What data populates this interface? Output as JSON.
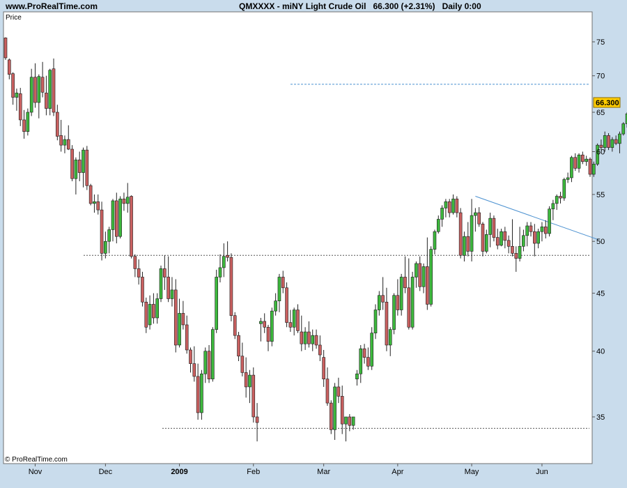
{
  "header": {
    "site": "www.ProRealTime.com",
    "symbol": "QMXXXX - miNY Light Crude Oil",
    "last": "66.300 (+2.31%)",
    "period": "Daily",
    "time": "0:00"
  },
  "footer": {
    "copyright": "© ProRealTime.com"
  },
  "colors": {
    "up": "#3db83d",
    "down": "#c96060",
    "wick": "#222222",
    "price_badge": "#ffcc00",
    "trend_line": "#4a90d0"
  },
  "chart_data": {
    "type": "candlestick",
    "ylabel": "Price",
    "ylim": [
      32,
      78
    ],
    "y_scale": "log",
    "yticks": [
      35,
      40,
      45,
      50,
      55,
      60,
      65,
      70,
      75
    ],
    "x_labels": [
      "Nov",
      "Dec",
      "2009",
      "Feb",
      "Mar",
      "Apr",
      "May",
      "Jun"
    ],
    "current_price": "66.300",
    "horizontal_levels": [
      68.8,
      48.6,
      34.2
    ],
    "trendline": {
      "from": {
        "bar": 127,
        "price": 54.8
      },
      "to": {
        "bar": 158,
        "price": 50.6
      }
    },
    "ohlc": [
      [
        75.6,
        75.7,
        72.3,
        72.6
      ],
      [
        72.3,
        72.5,
        69.5,
        70.2
      ],
      [
        70.3,
        70.5,
        66.0,
        67.0
      ],
      [
        67.0,
        68.2,
        65.2,
        67.6
      ],
      [
        67.5,
        68.3,
        63.2,
        64.0
      ],
      [
        64.0,
        65.3,
        61.6,
        62.5
      ],
      [
        62.5,
        65.5,
        62.0,
        65.0
      ],
      [
        65.0,
        71.0,
        64.5,
        69.8
      ],
      [
        69.8,
        71.8,
        65.6,
        66.3
      ],
      [
        66.3,
        70.2,
        64.2,
        69.9
      ],
      [
        69.8,
        72.0,
        67.0,
        67.7
      ],
      [
        67.6,
        70.0,
        64.6,
        65.5
      ],
      [
        65.5,
        71.0,
        64.6,
        70.8
      ],
      [
        71.0,
        72.5,
        64.5,
        65.0
      ],
      [
        65.0,
        66.0,
        61.4,
        61.9
      ],
      [
        62.0,
        64.0,
        60.0,
        60.8
      ],
      [
        60.8,
        62.0,
        59.8,
        61.5
      ],
      [
        61.5,
        63.3,
        60.2,
        60.3
      ],
      [
        60.3,
        60.8,
        56.5,
        56.8
      ],
      [
        56.8,
        59.3,
        55.0,
        59.0
      ],
      [
        59.0,
        60.0,
        56.5,
        57.5
      ],
      [
        57.5,
        60.5,
        55.8,
        60.2
      ],
      [
        60.2,
        60.7,
        55.5,
        56.0
      ],
      [
        56.0,
        56.2,
        53.8,
        54.0
      ],
      [
        54.0,
        55.0,
        53.0,
        54.2
      ],
      [
        54.2,
        55.0,
        52.8,
        53.3
      ],
      [
        53.3,
        54.2,
        48.1,
        48.8
      ],
      [
        48.8,
        51.0,
        48.3,
        50.0
      ],
      [
        50.0,
        51.5,
        48.8,
        51.2
      ],
      [
        51.2,
        54.5,
        50.0,
        54.3
      ],
      [
        54.3,
        55.2,
        49.8,
        50.5
      ],
      [
        50.5,
        54.8,
        50.3,
        54.5
      ],
      [
        54.5,
        55.2,
        53.2,
        54.0
      ],
      [
        54.0,
        56.3,
        53.0,
        54.7
      ],
      [
        54.8,
        54.9,
        48.3,
        48.5
      ],
      [
        48.5,
        48.7,
        46.5,
        47.3
      ],
      [
        47.3,
        48.2,
        45.8,
        46.5
      ],
      [
        46.5,
        47.0,
        43.8,
        44.2
      ],
      [
        44.2,
        44.6,
        41.5,
        42.0
      ],
      [
        42.2,
        44.8,
        41.8,
        44.0
      ],
      [
        44.0,
        45.0,
        42.3,
        42.8
      ],
      [
        42.8,
        45.0,
        42.3,
        44.5
      ],
      [
        44.5,
        47.6,
        44.2,
        47.3
      ],
      [
        47.3,
        48.6,
        45.3,
        46.5
      ],
      [
        46.5,
        48.5,
        44.2,
        44.5
      ],
      [
        44.5,
        46.5,
        43.8,
        45.3
      ],
      [
        45.3,
        46.3,
        39.9,
        40.5
      ],
      [
        40.5,
        44.5,
        40.3,
        43.2
      ],
      [
        43.2,
        44.3,
        41.8,
        42.2
      ],
      [
        42.2,
        43.0,
        39.8,
        40.1
      ],
      [
        40.1,
        40.3,
        38.3,
        39.0
      ],
      [
        39.0,
        40.4,
        37.6,
        38.0
      ],
      [
        38.0,
        39.0,
        34.8,
        35.3
      ],
      [
        35.3,
        38.5,
        34.8,
        38.2
      ],
      [
        38.2,
        40.3,
        37.5,
        40.0
      ],
      [
        40.0,
        40.5,
        37.5,
        37.8
      ],
      [
        37.8,
        42.0,
        37.6,
        41.8
      ],
      [
        41.8,
        47.2,
        41.5,
        46.5
      ],
      [
        46.5,
        48.7,
        46.0,
        47.4
      ],
      [
        47.4,
        49.8,
        46.5,
        48.5
      ],
      [
        48.6,
        50.0,
        48.0,
        48.4
      ],
      [
        48.4,
        48.8,
        42.5,
        43.0
      ],
      [
        43.0,
        43.3,
        41.0,
        41.3
      ],
      [
        41.3,
        41.6,
        39.2,
        39.6
      ],
      [
        39.6,
        40.7,
        38.0,
        38.3
      ],
      [
        38.3,
        39.5,
        36.4,
        37.2
      ],
      [
        37.2,
        38.5,
        36.0,
        38.1
      ],
      [
        38.1,
        38.7,
        34.6,
        35.0
      ],
      [
        35.0,
        36.0,
        33.3,
        34.6
      ],
      [
        42.3,
        42.8,
        40.8,
        42.5
      ],
      [
        42.5,
        43.2,
        41.5,
        42.0
      ],
      [
        42.0,
        42.2,
        40.0,
        40.8
      ],
      [
        40.8,
        43.7,
        40.4,
        43.4
      ],
      [
        43.4,
        45.0,
        43.0,
        44.3
      ],
      [
        44.3,
        46.8,
        43.3,
        46.5
      ],
      [
        46.5,
        47.1,
        45.0,
        45.5
      ],
      [
        45.5,
        46.0,
        42.0,
        42.4
      ],
      [
        42.4,
        43.5,
        41.6,
        42.0
      ],
      [
        42.0,
        43.7,
        41.3,
        43.5
      ],
      [
        43.5,
        44.0,
        41.5,
        41.7
      ],
      [
        41.6,
        43.0,
        40.0,
        40.6
      ],
      [
        40.6,
        42.0,
        40.1,
        41.6
      ],
      [
        41.6,
        42.5,
        40.3,
        40.6
      ],
      [
        40.6,
        41.8,
        40.0,
        41.3
      ],
      [
        41.3,
        41.8,
        40.2,
        40.5
      ],
      [
        40.5,
        41.3,
        39.2,
        39.7
      ],
      [
        39.5,
        40.1,
        37.2,
        37.8
      ],
      [
        37.8,
        38.7,
        35.8,
        36.0
      ],
      [
        36.0,
        36.2,
        33.8,
        34.1
      ],
      [
        34.1,
        37.5,
        33.4,
        37.2
      ],
      [
        37.2,
        37.9,
        36.0,
        36.5
      ],
      [
        36.5,
        37.3,
        33.8,
        34.5
      ],
      [
        34.5,
        35.0,
        33.3,
        35.0
      ],
      [
        35.0,
        35.2,
        34.0,
        34.4
      ],
      [
        34.4,
        35.0,
        34.1,
        35.0
      ],
      [
        37.8,
        38.5,
        37.3,
        38.2
      ],
      [
        38.2,
        40.5,
        37.5,
        40.2
      ],
      [
        40.2,
        40.6,
        39.0,
        39.5
      ],
      [
        39.5,
        40.3,
        38.5,
        38.8
      ],
      [
        38.8,
        42.0,
        38.5,
        41.5
      ],
      [
        41.5,
        44.0,
        41.0,
        43.5
      ],
      [
        43.5,
        45.2,
        43.0,
        44.8
      ],
      [
        44.8,
        46.5,
        43.5,
        44.2
      ],
      [
        44.2,
        45.5,
        40.0,
        40.5
      ],
      [
        40.5,
        42.0,
        39.6,
        41.8
      ],
      [
        41.8,
        45.0,
        41.4,
        44.8
      ],
      [
        44.8,
        46.3,
        43.0,
        43.5
      ],
      [
        43.5,
        46.8,
        43.0,
        46.5
      ],
      [
        46.5,
        48.5,
        45.0,
        45.5
      ],
      [
        45.5,
        48.3,
        41.8,
        42.0
      ],
      [
        42.0,
        47.0,
        41.8,
        46.5
      ],
      [
        46.5,
        48.0,
        45.5,
        47.8
      ],
      [
        47.8,
        48.5,
        45.2,
        45.6
      ],
      [
        45.6,
        47.8,
        45.0,
        47.5
      ],
      [
        47.5,
        50.4,
        43.5,
        44.0
      ],
      [
        44.0,
        49.5,
        43.8,
        49.2
      ],
      [
        49.2,
        51.2,
        48.7,
        51.0
      ],
      [
        51.0,
        52.7,
        50.8,
        52.3
      ],
      [
        52.3,
        53.8,
        51.5,
        53.5
      ],
      [
        53.5,
        54.5,
        52.5,
        54.2
      ],
      [
        54.2,
        54.5,
        52.5,
        53.0
      ],
      [
        53.0,
        55.0,
        52.8,
        54.5
      ],
      [
        54.5,
        54.8,
        52.5,
        53.0
      ],
      [
        53.0,
        53.5,
        48.3,
        48.6
      ],
      [
        48.6,
        51.0,
        48.0,
        50.5
      ],
      [
        50.5,
        52.0,
        48.5,
        49.0
      ],
      [
        49.0,
        54.5,
        48.0,
        52.7
      ],
      [
        52.7,
        53.5,
        51.0,
        53.0
      ],
      [
        53.0,
        53.6,
        51.5,
        51.8
      ],
      [
        51.8,
        52.0,
        48.5,
        49.0
      ],
      [
        49.0,
        51.2,
        48.8,
        50.7
      ],
      [
        50.7,
        53.0,
        49.4,
        52.4
      ],
      [
        52.4,
        52.7,
        50.0,
        50.4
      ],
      [
        50.4,
        51.3,
        49.2,
        49.6
      ],
      [
        49.6,
        51.3,
        49.5,
        51.0
      ],
      [
        51.0,
        51.5,
        49.3,
        50.1
      ],
      [
        50.1,
        50.6,
        48.8,
        49.5
      ],
      [
        49.5,
        52.3,
        48.5,
        48.8
      ],
      [
        48.8,
        49.5,
        47.0,
        48.3
      ],
      [
        48.3,
        51.5,
        48.0,
        49.5
      ],
      [
        49.5,
        51.2,
        49.0,
        50.6
      ],
      [
        50.6,
        52.0,
        49.5,
        51.6
      ],
      [
        51.6,
        52.0,
        50.5,
        51.0
      ],
      [
        51.0,
        51.8,
        48.5,
        49.8
      ],
      [
        49.8,
        51.3,
        49.3,
        51.0
      ],
      [
        51.0,
        52.0,
        50.0,
        51.5
      ],
      [
        51.5,
        52.2,
        50.3,
        50.8
      ],
      [
        50.8,
        53.7,
        50.5,
        53.4
      ],
      [
        53.4,
        54.4,
        52.2,
        54.0
      ],
      [
        54.0,
        55.0,
        53.3,
        54.8
      ],
      [
        54.8,
        55.3,
        54.0,
        54.6
      ],
      [
        54.6,
        56.9,
        54.3,
        56.7
      ],
      [
        56.7,
        57.5,
        56.3,
        56.9
      ],
      [
        56.9,
        59.5,
        56.4,
        59.3
      ],
      [
        59.3,
        59.8,
        57.7,
        58.0
      ],
      [
        58.0,
        59.8,
        57.5,
        59.6
      ],
      [
        59.6,
        60.0,
        58.5,
        58.8
      ],
      [
        58.8,
        59.5,
        58.3,
        59.1
      ],
      [
        59.1,
        59.3,
        57.0,
        57.3
      ],
      [
        57.3,
        58.8,
        57.0,
        58.5
      ],
      [
        58.5,
        61.0,
        58.3,
        60.8
      ],
      [
        60.8,
        61.5,
        60.2,
        60.5
      ],
      [
        60.5,
        62.5,
        60.0,
        62.0
      ],
      [
        62.0,
        62.3,
        60.2,
        60.5
      ],
      [
        60.5,
        61.8,
        60.0,
        61.5
      ],
      [
        61.5,
        62.0,
        60.8,
        61.0
      ],
      [
        61.0,
        62.5,
        59.8,
        62.2
      ],
      [
        62.2,
        63.7,
        62.0,
        63.5
      ],
      [
        63.5,
        65.0,
        63.0,
        64.8
      ],
      [
        64.8,
        66.8,
        64.5,
        66.3
      ]
    ]
  }
}
